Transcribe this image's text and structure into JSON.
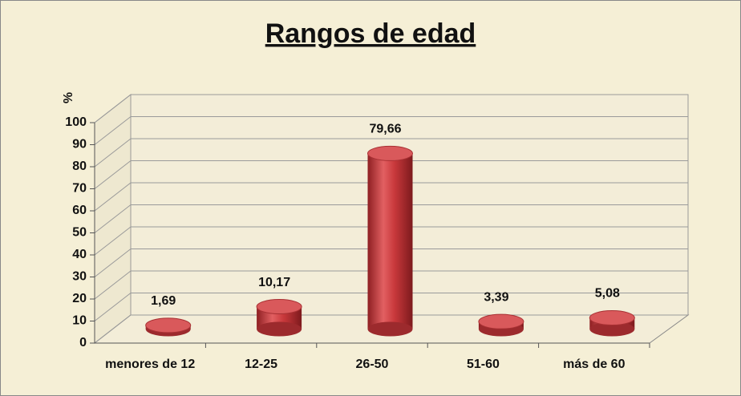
{
  "chart_data": {
    "type": "bar3d",
    "title": "Rangos de edad",
    "y_label": "%",
    "categories": [
      "menores de 12",
      "12-25",
      "26-50",
      "51-60",
      "más de 60"
    ],
    "values": [
      1.69,
      10.17,
      79.66,
      3.39,
      5.08
    ],
    "value_labels": [
      "1,69",
      "10,17",
      "79,66",
      "3,39",
      "5,08"
    ],
    "color": "#c0393b",
    "ylim": [
      0,
      100
    ],
    "yticks": [
      0,
      10,
      20,
      30,
      40,
      50,
      60,
      70,
      80,
      90,
      100
    ],
    "grid": true
  }
}
